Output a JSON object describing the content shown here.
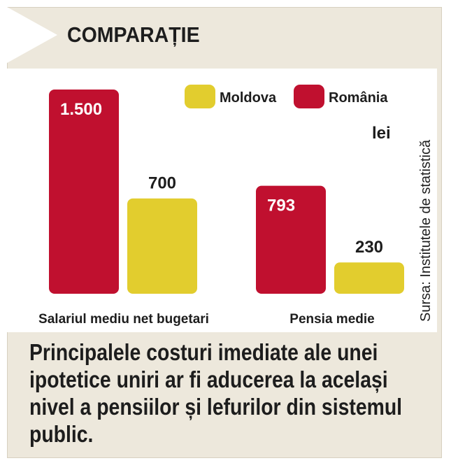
{
  "header": {
    "title": "COMPARAȚIE"
  },
  "colors": {
    "romania": "#c0102f",
    "moldova": "#e2cd2e",
    "panel": "#ede8dc"
  },
  "source": "Sursa: Institutele de statistică",
  "caption": "Principalele costuri imediate ale unei ipotetice uniri ar fi aducerea la același nivel a pensiilor și lefurilor din sistemul public.",
  "chart_data": {
    "type": "bar",
    "categories": [
      "Salariul mediu net bugetari",
      "Pensia medie"
    ],
    "series": [
      {
        "name": "România",
        "values": [
          1500,
          793
        ],
        "labels": [
          "1.500",
          "793"
        ],
        "color": "#c0102f"
      },
      {
        "name": "Moldova",
        "values": [
          700,
          230
        ],
        "labels": [
          "700",
          "230"
        ],
        "color": "#e2cd2e"
      }
    ],
    "legend": [
      "Moldova",
      "România"
    ],
    "unit": "lei",
    "ylim": [
      0,
      1500
    ],
    "grid": false,
    "legend_position": "top-right"
  }
}
